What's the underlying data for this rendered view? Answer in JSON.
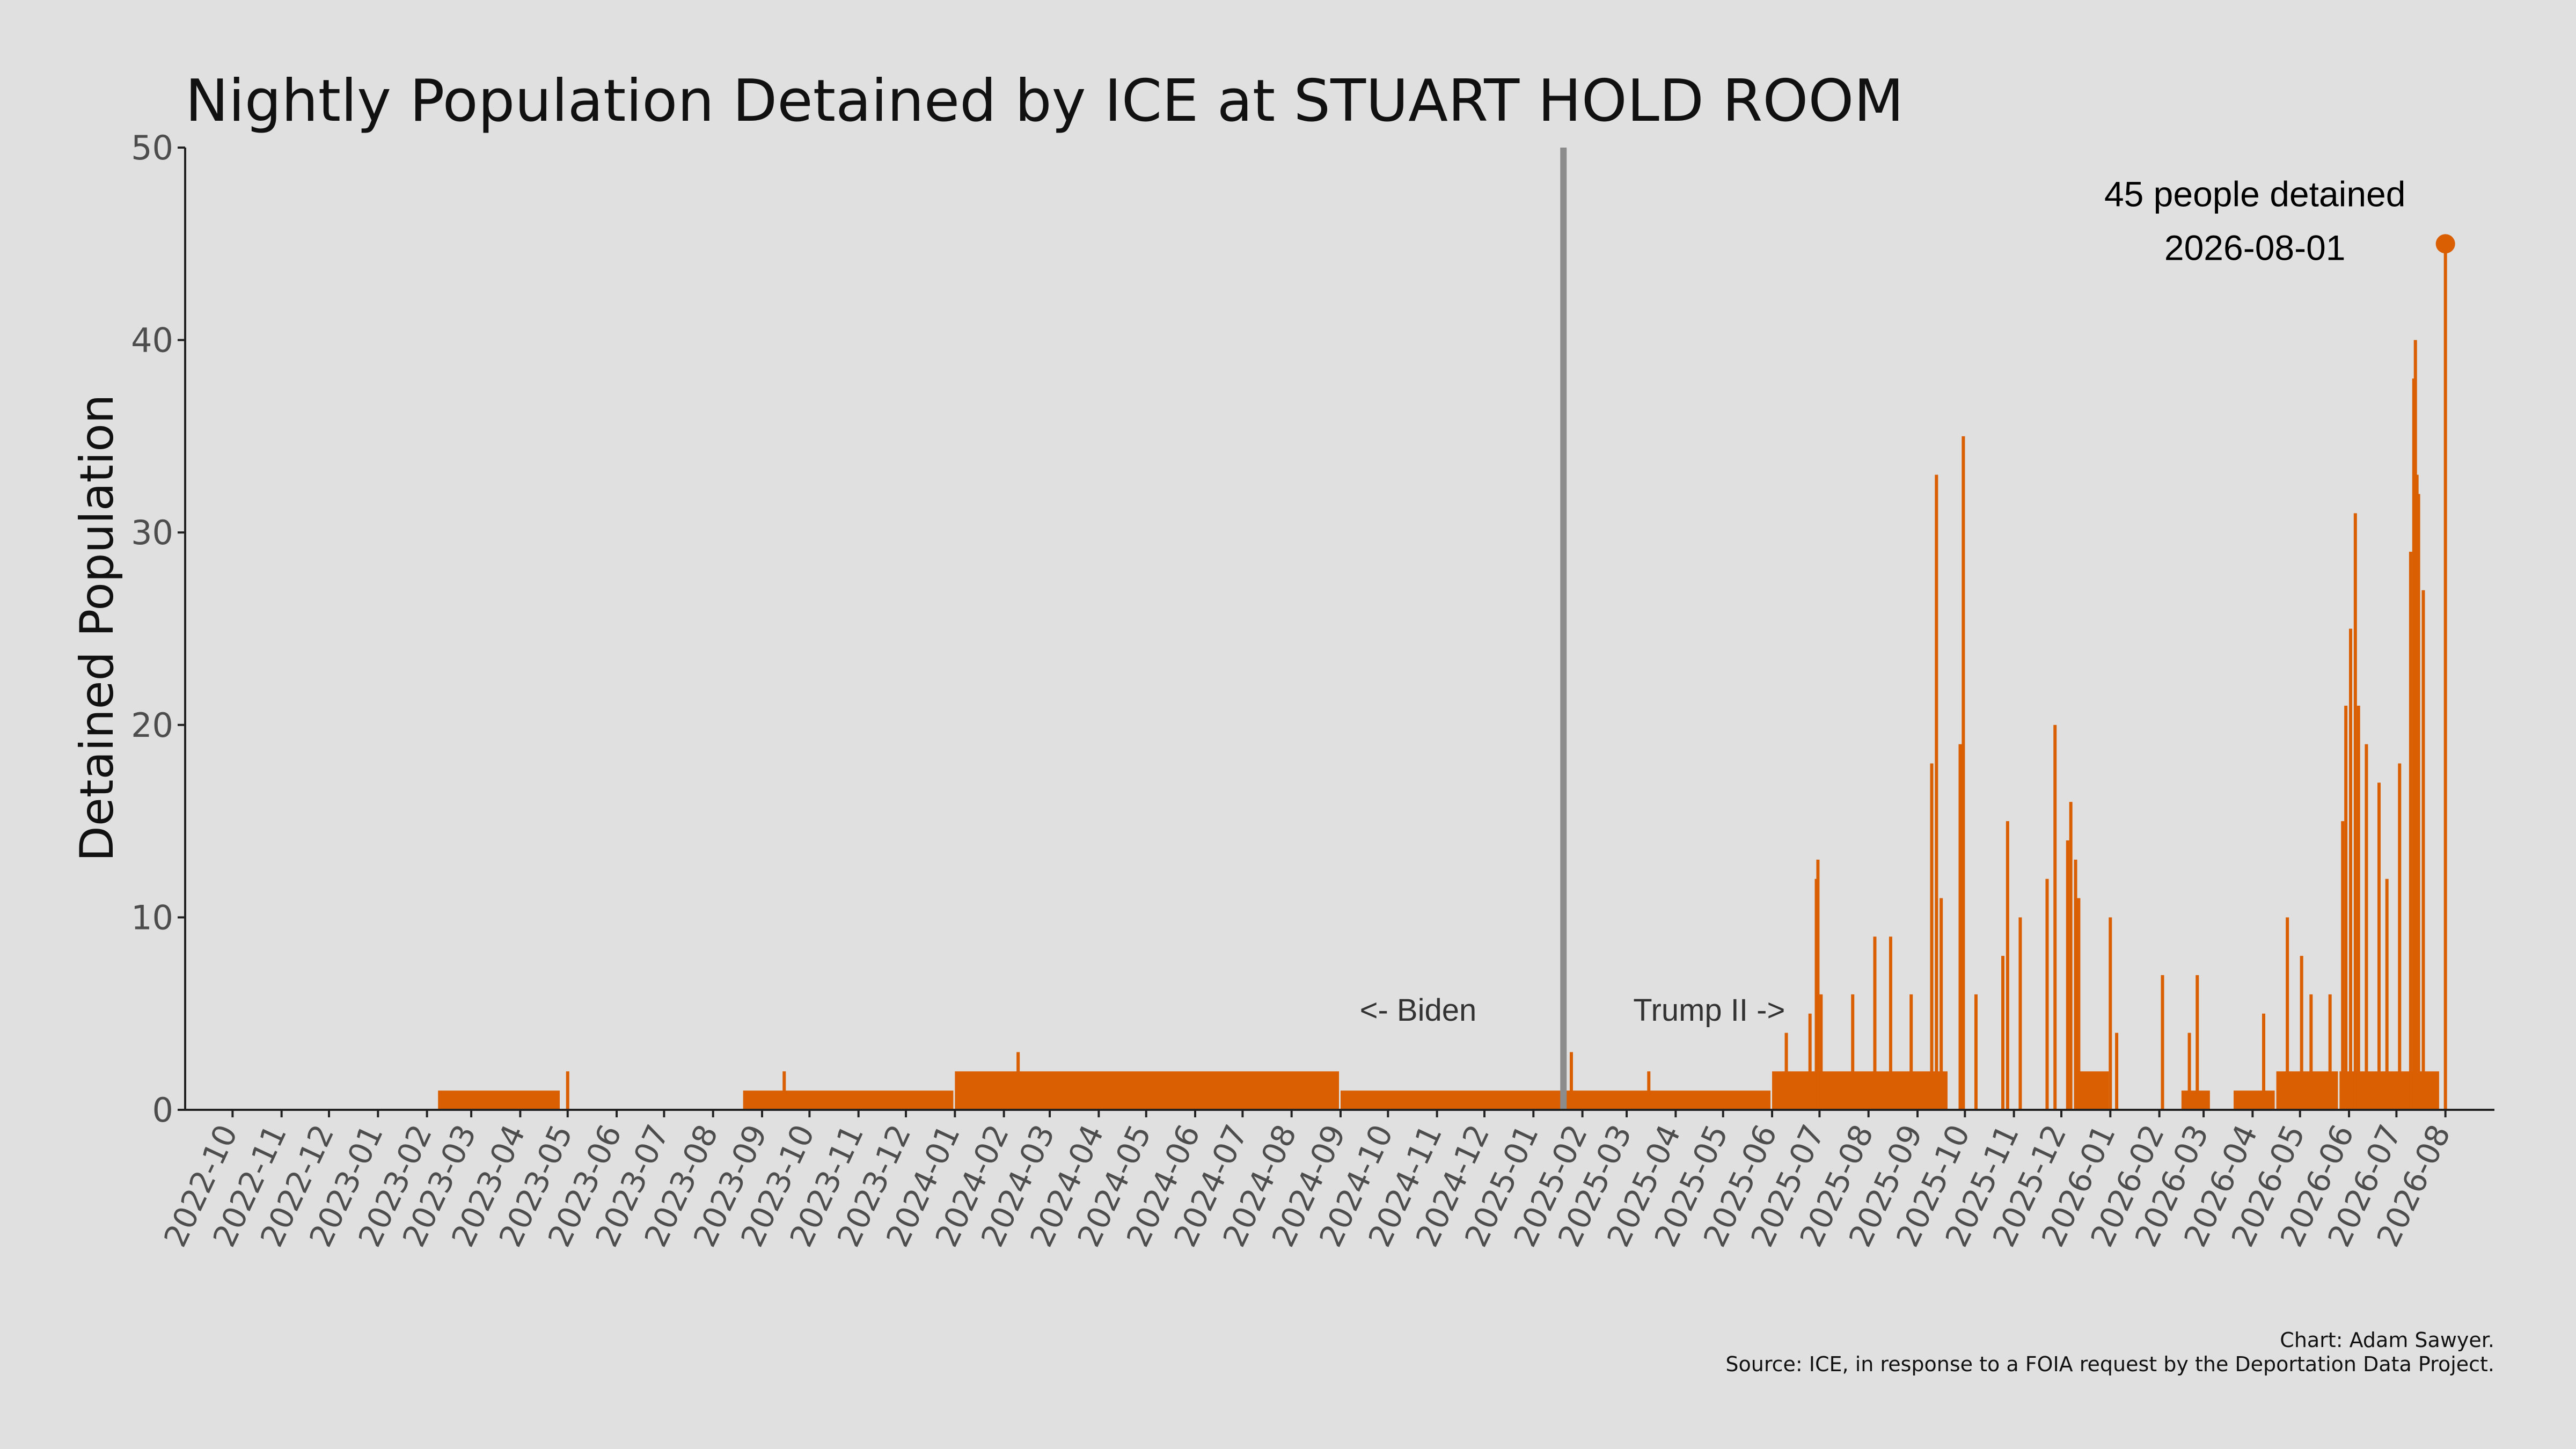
{
  "chart_data": {
    "type": "bar",
    "title": "Nightly Population Detained by ICE at STUART HOLD ROOM",
    "ylabel": "Detained Population",
    "xlabel": "",
    "ylim": [
      0,
      50
    ],
    "yticks": [
      "0",
      "10",
      "20",
      "30",
      "40",
      "50"
    ],
    "xticks": [
      "2022-10",
      "2022-11",
      "2022-12",
      "2023-01",
      "2023-02",
      "2023-03",
      "2023-04",
      "2023-05",
      "2023-06",
      "2023-07",
      "2023-08",
      "2023-09",
      "2023-10",
      "2023-11",
      "2023-12",
      "2024-01",
      "2024-02",
      "2024-03",
      "2024-04",
      "2024-05",
      "2024-06",
      "2024-07",
      "2024-08",
      "2024-09",
      "2024-10",
      "2024-11",
      "2024-12",
      "2025-01",
      "2025-02",
      "2025-03",
      "2025-04",
      "2025-05",
      "2025-06",
      "2025-07",
      "2025-08",
      "2025-09",
      "2025-10",
      "2025-11",
      "2025-12",
      "2026-01",
      "2026-02",
      "2026-03",
      "2026-04",
      "2026-05",
      "2026-06",
      "2026-07",
      "2026-08"
    ],
    "grid": false,
    "color": "#d95f02",
    "divider_date": "2025-01-20",
    "divider_color": "#8c8c8c",
    "segments": [
      {
        "start": "2023-02-08",
        "end": "2023-04-26",
        "value": 1
      },
      {
        "start": "2023-08-20",
        "end": "2023-12-31",
        "value": 1
      },
      {
        "start": "2024-01-01",
        "end": "2024-08-31",
        "value": 2
      },
      {
        "start": "2024-09-01",
        "end": "2025-01-20",
        "value": 1
      },
      {
        "start": "2025-01-21",
        "end": "2025-05-31",
        "value": 1
      },
      {
        "start": "2025-06-01",
        "end": "2025-09-20",
        "value": 2
      },
      {
        "start": "2025-12-10",
        "end": "2025-12-31",
        "value": 2
      },
      {
        "start": "2026-02-15",
        "end": "2026-03-05",
        "value": 1
      },
      {
        "start": "2026-03-20",
        "end": "2026-04-15",
        "value": 1
      },
      {
        "start": "2026-04-16",
        "end": "2026-05-25",
        "value": 2
      },
      {
        "start": "2026-05-26",
        "end": "2026-07-28",
        "value": 2
      }
    ],
    "spikes": [
      {
        "date": "2023-05-01",
        "value": 2
      },
      {
        "date": "2023-09-15",
        "value": 2
      },
      {
        "date": "2024-02-10",
        "value": 3
      },
      {
        "date": "2025-01-25",
        "value": 3
      },
      {
        "date": "2025-03-15",
        "value": 2
      },
      {
        "date": "2025-06-10",
        "value": 4
      },
      {
        "date": "2025-06-25",
        "value": 5
      },
      {
        "date": "2025-06-29",
        "value": 12
      },
      {
        "date": "2025-06-30",
        "value": 13
      },
      {
        "date": "2025-07-02",
        "value": 6
      },
      {
        "date": "2025-07-22",
        "value": 6
      },
      {
        "date": "2025-08-05",
        "value": 9
      },
      {
        "date": "2025-08-15",
        "value": 9
      },
      {
        "date": "2025-08-28",
        "value": 6
      },
      {
        "date": "2025-09-10",
        "value": 18
      },
      {
        "date": "2025-09-13",
        "value": 33
      },
      {
        "date": "2025-09-16",
        "value": 11
      },
      {
        "date": "2025-09-28",
        "value": 19
      },
      {
        "date": "2025-09-30",
        "value": 35
      },
      {
        "date": "2025-10-08",
        "value": 6
      },
      {
        "date": "2025-10-25",
        "value": 8
      },
      {
        "date": "2025-10-28",
        "value": 15
      },
      {
        "date": "2025-11-05",
        "value": 10
      },
      {
        "date": "2025-11-22",
        "value": 12
      },
      {
        "date": "2025-11-27",
        "value": 20
      },
      {
        "date": "2025-12-05",
        "value": 14
      },
      {
        "date": "2025-12-07",
        "value": 16
      },
      {
        "date": "2025-12-10",
        "value": 13
      },
      {
        "date": "2025-12-12",
        "value": 11
      },
      {
        "date": "2026-01-01",
        "value": 10
      },
      {
        "date": "2026-01-05",
        "value": 4
      },
      {
        "date": "2026-02-03",
        "value": 7
      },
      {
        "date": "2026-02-20",
        "value": 4
      },
      {
        "date": "2026-02-25",
        "value": 7
      },
      {
        "date": "2026-04-08",
        "value": 5
      },
      {
        "date": "2026-04-23",
        "value": 10
      },
      {
        "date": "2026-05-02",
        "value": 8
      },
      {
        "date": "2026-05-08",
        "value": 6
      },
      {
        "date": "2026-05-20",
        "value": 6
      },
      {
        "date": "2026-05-28",
        "value": 15
      },
      {
        "date": "2026-05-30",
        "value": 21
      },
      {
        "date": "2026-06-02",
        "value": 25
      },
      {
        "date": "2026-06-05",
        "value": 31
      },
      {
        "date": "2026-06-07",
        "value": 21
      },
      {
        "date": "2026-06-12",
        "value": 19
      },
      {
        "date": "2026-06-20",
        "value": 17
      },
      {
        "date": "2026-06-25",
        "value": 12
      },
      {
        "date": "2026-07-03",
        "value": 18
      },
      {
        "date": "2026-07-10",
        "value": 29
      },
      {
        "date": "2026-07-12",
        "value": 38
      },
      {
        "date": "2026-07-13",
        "value": 40
      },
      {
        "date": "2026-07-14",
        "value": 33
      },
      {
        "date": "2026-07-15",
        "value": 32
      },
      {
        "date": "2026-07-18",
        "value": 27
      },
      {
        "date": "2026-08-01",
        "value": 45
      }
    ],
    "peak": {
      "date": "2026-08-01",
      "value": 45,
      "label": "45 people detained"
    },
    "annotations": {
      "before_label": "<- Biden",
      "after_label": "Trump II ->"
    },
    "caption": {
      "line1": "Chart: Adam Sawyer.",
      "line2": "Source: ICE, in response to a FOIA request by the Deportation Data Project."
    }
  }
}
